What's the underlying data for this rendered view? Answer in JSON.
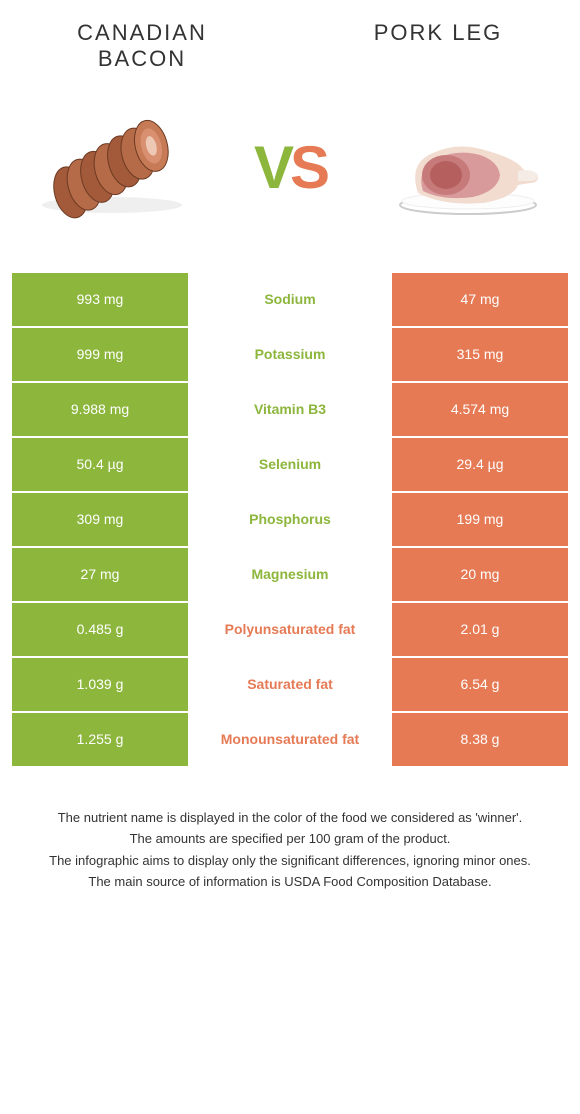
{
  "colors": {
    "left": "#8cb63c",
    "right": "#e67a55",
    "bg": "#ffffff",
    "text": "#333333"
  },
  "foodA": {
    "name": "CANADIAN BACON"
  },
  "foodB": {
    "name": "PORK LEG"
  },
  "vs": "VS",
  "rows": [
    {
      "left": "993 mg",
      "label": "Sodium",
      "right": "47 mg",
      "winner": "left"
    },
    {
      "left": "999 mg",
      "label": "Potassium",
      "right": "315 mg",
      "winner": "left"
    },
    {
      "left": "9.988 mg",
      "label": "Vitamin B3",
      "right": "4.574 mg",
      "winner": "left"
    },
    {
      "left": "50.4 µg",
      "label": "Selenium",
      "right": "29.4 µg",
      "winner": "left"
    },
    {
      "left": "309 mg",
      "label": "Phosphorus",
      "right": "199 mg",
      "winner": "left"
    },
    {
      "left": "27 mg",
      "label": "Magnesium",
      "right": "20 mg",
      "winner": "left"
    },
    {
      "left": "0.485 g",
      "label": "Polyunsaturated fat",
      "right": "2.01 g",
      "winner": "right"
    },
    {
      "left": "1.039 g",
      "label": "Saturated fat",
      "right": "6.54 g",
      "winner": "right"
    },
    {
      "left": "1.255 g",
      "label": "Monounsaturated fat",
      "right": "8.38 g",
      "winner": "right"
    }
  ],
  "footnotes": [
    "The nutrient name is displayed in the color of the food we considered as 'winner'.",
    "The amounts are specified per 100 gram of the product.",
    "The infographic aims to display only the significant differences, ignoring minor ones.",
    "The main source of information is USDA Food Composition Database."
  ]
}
